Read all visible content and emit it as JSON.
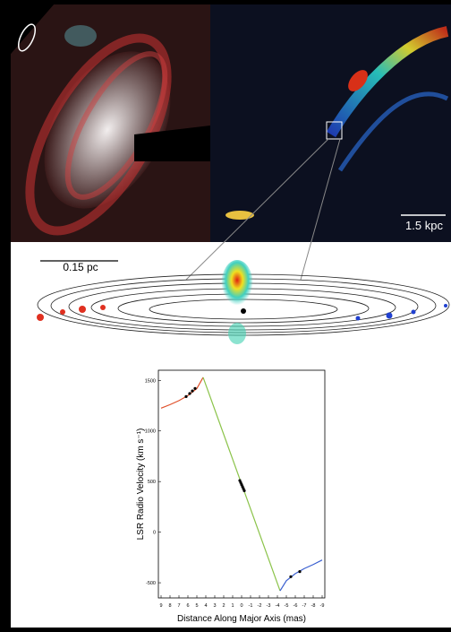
{
  "labels": {
    "galaxy_scale": "1.5 kpc",
    "disk_scale": "0.15 pc"
  },
  "chart_data": {
    "type": "line",
    "ylabel": "LSR Radio Velocity (km s⁻¹)",
    "xlabel": "Distance Along Major Axis (mas)",
    "xlim": [
      9.3,
      -9.3
    ],
    "xticks": [
      9,
      8,
      7,
      6,
      5,
      4,
      3,
      2,
      1,
      0,
      -1,
      -2,
      -3,
      -4,
      -5,
      -6,
      -7,
      -8,
      -9
    ],
    "ylim": [
      -650,
      1600
    ],
    "yticks": [
      1500,
      1000,
      500,
      0,
      -500
    ],
    "series": [
      {
        "color": "#e0502a",
        "x": [
          9,
          8,
          7,
          6,
          5,
          4.3
        ],
        "values": [
          1225,
          1260,
          1300,
          1350,
          1420,
          1530
        ]
      },
      {
        "color": "#8bc34a",
        "x": [
          4.3,
          -4.3
        ],
        "values": [
          1530,
          -580
        ]
      },
      {
        "color": "#3a5fd0",
        "x": [
          -4.3,
          -5,
          -6,
          -7,
          -8,
          -9
        ],
        "values": [
          -580,
          -480,
          -410,
          -360,
          -320,
          -275
        ]
      },
      {
        "style": "markers",
        "color": "#000000",
        "x": [
          6.2,
          5.8,
          5.5,
          5.2,
          0.2,
          0.1,
          0,
          -0.1,
          -0.2,
          -0.3,
          -5.5,
          -6.5
        ],
        "values": [
          1340,
          1370,
          1395,
          1420,
          510,
          490,
          470,
          450,
          430,
          410,
          -440,
          -390
        ]
      }
    ]
  }
}
